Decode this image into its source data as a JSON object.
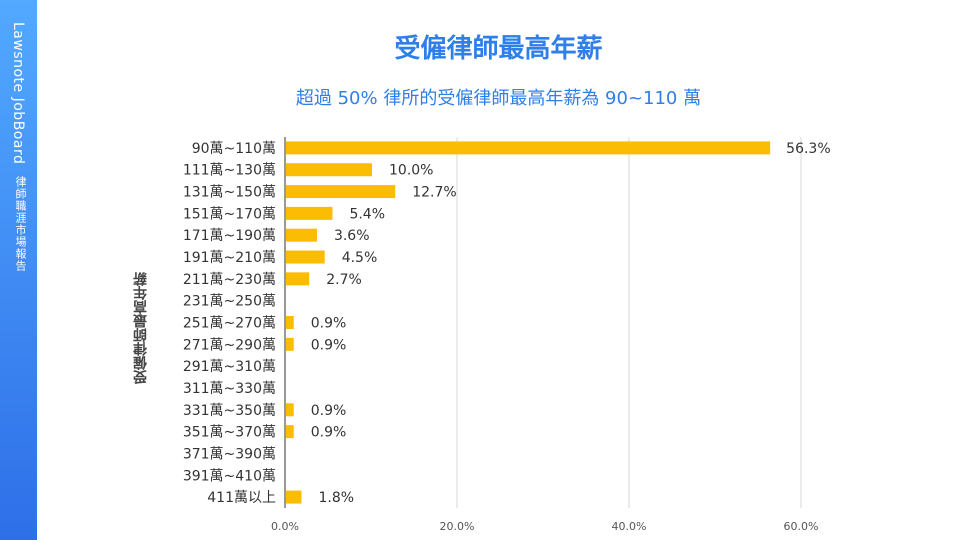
{
  "sidebar": {
    "brand": "Lawsnote JobBoard",
    "subtitle": "律師職涯市場報告"
  },
  "header": {
    "title": "受僱律師最高年薪",
    "subtitle": "超過 50% 律所的受僱律師最高年薪為 90~110 萬"
  },
  "colors": {
    "accent": "#2f7fe8",
    "bar": "#fbbc04",
    "sidebar_top": "#52a9ff",
    "sidebar_bottom": "#2e6fe8"
  },
  "chart_data": {
    "type": "bar",
    "orientation": "horizontal",
    "title": "受僱律師最高年薪",
    "subtitle": "超過 50% 律所的受僱律師最高年薪為 90~110 萬",
    "ylabel": "受僱律師最高年薪",
    "xlabel": "",
    "categories": [
      "90萬~110萬",
      "111萬~130萬",
      "131萬~150萬",
      "151萬~170萬",
      "171萬~190萬",
      "191萬~210萬",
      "211萬~230萬",
      "231萬~250萬",
      "251萬~270萬",
      "271萬~290萬",
      "291萬~310萬",
      "311萬~330萬",
      "331萬~350萬",
      "351萬~370萬",
      "371萬~390萬",
      "391萬~410萬",
      "411萬以上"
    ],
    "values": [
      56.3,
      10.0,
      12.7,
      5.4,
      3.6,
      4.5,
      2.7,
      0,
      0.9,
      0.9,
      0,
      0,
      0.9,
      0.9,
      0,
      0,
      1.8
    ],
    "data_labels": [
      "56.3%",
      "10.0%",
      "12.7%",
      "5.4%",
      "3.6%",
      "4.5%",
      "2.7%",
      "",
      "0.9%",
      "0.9%",
      "",
      "",
      "0.9%",
      "0.9%",
      "",
      "",
      "1.8%"
    ],
    "xlim": [
      0,
      60
    ],
    "xticks": [
      "0.0%",
      "20.0%",
      "40.0%",
      "60.0%"
    ],
    "grid": true,
    "legend": "none"
  }
}
